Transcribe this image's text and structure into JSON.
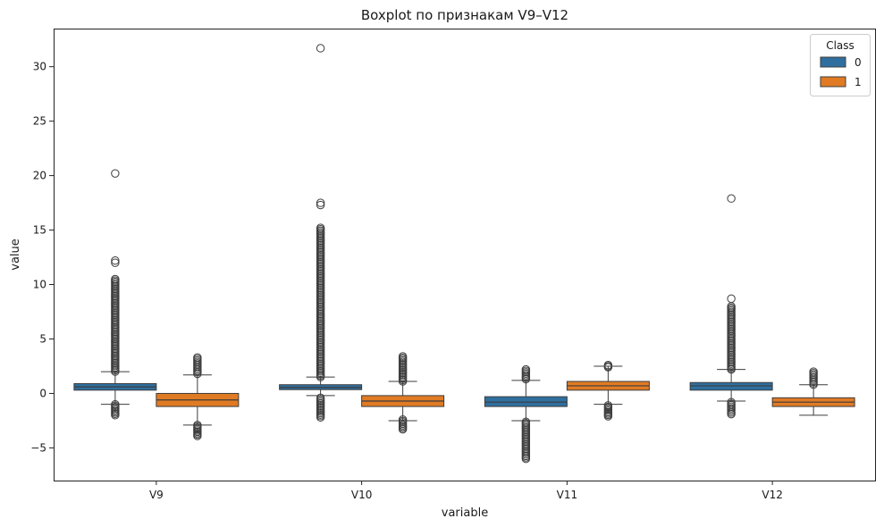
{
  "chart_data": {
    "type": "box",
    "title": "Boxplot по признакам V9–V12",
    "xlabel": "variable",
    "ylabel": "value",
    "categories": [
      "V9",
      "V10",
      "V11",
      "V12"
    ],
    "ylim": [
      -8,
      33.5
    ],
    "yticks": [
      -5,
      0,
      5,
      10,
      15,
      20,
      25,
      30
    ],
    "ytick_labels": [
      "−5",
      "0",
      "5",
      "10",
      "15",
      "20",
      "25",
      "30"
    ],
    "grid": false,
    "legend": {
      "title": "Class",
      "position": "top-right"
    },
    "series": [
      {
        "name": "0",
        "color": "#2f6f9f",
        "boxes": [
          {
            "category": "V9",
            "q1": 0.3,
            "median": 0.6,
            "q3": 0.9,
            "whisker_low": -1.0,
            "whisker_high": 2.0,
            "outliers_high_range": [
              2.0,
              10.5
            ],
            "outliers_low_range": [
              -2.0,
              -1.0
            ],
            "extra_outliers": [
              12.0,
              12.2,
              20.2
            ]
          },
          {
            "category": "V10",
            "q1": 0.35,
            "median": 0.55,
            "q3": 0.8,
            "whisker_low": -0.2,
            "whisker_high": 1.5,
            "outliers_high_range": [
              1.5,
              15.2
            ],
            "outliers_low_range": [
              -2.2,
              -0.4
            ],
            "extra_outliers": [
              17.3,
              17.5,
              31.7
            ]
          },
          {
            "category": "V11",
            "q1": -1.2,
            "median": -0.8,
            "q3": -0.3,
            "whisker_low": -2.5,
            "whisker_high": 1.2,
            "outliers_high_range": [
              1.3,
              2.2
            ],
            "outliers_low_range": [
              -6.0,
              -2.6
            ],
            "extra_outliers": []
          },
          {
            "category": "V12",
            "q1": 0.3,
            "median": 0.7,
            "q3": 1.0,
            "whisker_low": -0.7,
            "whisker_high": 2.2,
            "outliers_high_range": [
              2.2,
              8.0
            ],
            "outliers_low_range": [
              -1.9,
              -0.8
            ],
            "extra_outliers": [
              8.7,
              17.9
            ]
          }
        ]
      },
      {
        "name": "1",
        "color": "#e07b24",
        "boxes": [
          {
            "category": "V9",
            "q1": -1.2,
            "median": -0.6,
            "q3": 0.0,
            "whisker_low": -2.9,
            "whisker_high": 1.7,
            "outliers_high_range": [
              1.8,
              3.3
            ],
            "outliers_low_range": [
              -3.9,
              -2.9
            ],
            "extra_outliers": []
          },
          {
            "category": "V10",
            "q1": -1.2,
            "median": -0.7,
            "q3": -0.2,
            "whisker_low": -2.5,
            "whisker_high": 1.1,
            "outliers_high_range": [
              1.1,
              3.4
            ],
            "outliers_low_range": [
              -3.3,
              -2.4
            ],
            "extra_outliers": []
          },
          {
            "category": "V11",
            "q1": 0.3,
            "median": 0.7,
            "q3": 1.1,
            "whisker_low": -1.0,
            "whisker_high": 2.5,
            "outliers_high_range": [
              2.4,
              2.6
            ],
            "outliers_low_range": [
              -2.1,
              -1.1
            ],
            "extra_outliers": []
          },
          {
            "category": "V12",
            "q1": -1.2,
            "median": -0.8,
            "q3": -0.4,
            "whisker_low": -2.0,
            "whisker_high": 0.8,
            "outliers_high_range": [
              0.8,
              2.0
            ],
            "outliers_low_range": [],
            "extra_outliers": []
          }
        ]
      }
    ]
  }
}
